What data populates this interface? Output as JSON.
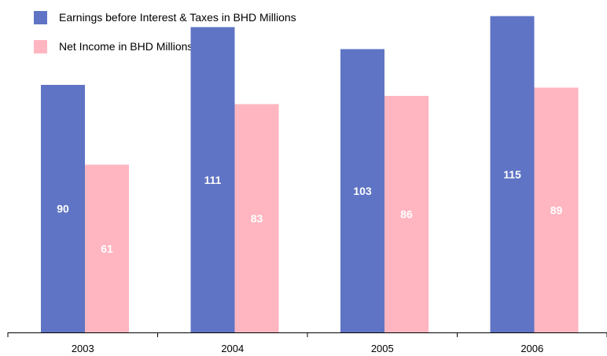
{
  "chart_data": {
    "type": "bar",
    "categories": [
      "2003",
      "2004",
      "2005",
      "2006"
    ],
    "series": [
      {
        "name": "Earnings before Interest & Taxes in BHD Millions",
        "values": [
          90,
          111,
          103,
          115
        ],
        "color": "#5f74c4"
      },
      {
        "name": "Net Income in BHD Millions",
        "values": [
          61,
          83,
          86,
          89
        ],
        "color": "#ffb6c1"
      }
    ],
    "title": "",
    "xlabel": "",
    "ylabel": "",
    "ylim": [
      0,
      125
    ],
    "grid": false,
    "legend_position": "top-left",
    "data_label_color": "#ffffff"
  }
}
